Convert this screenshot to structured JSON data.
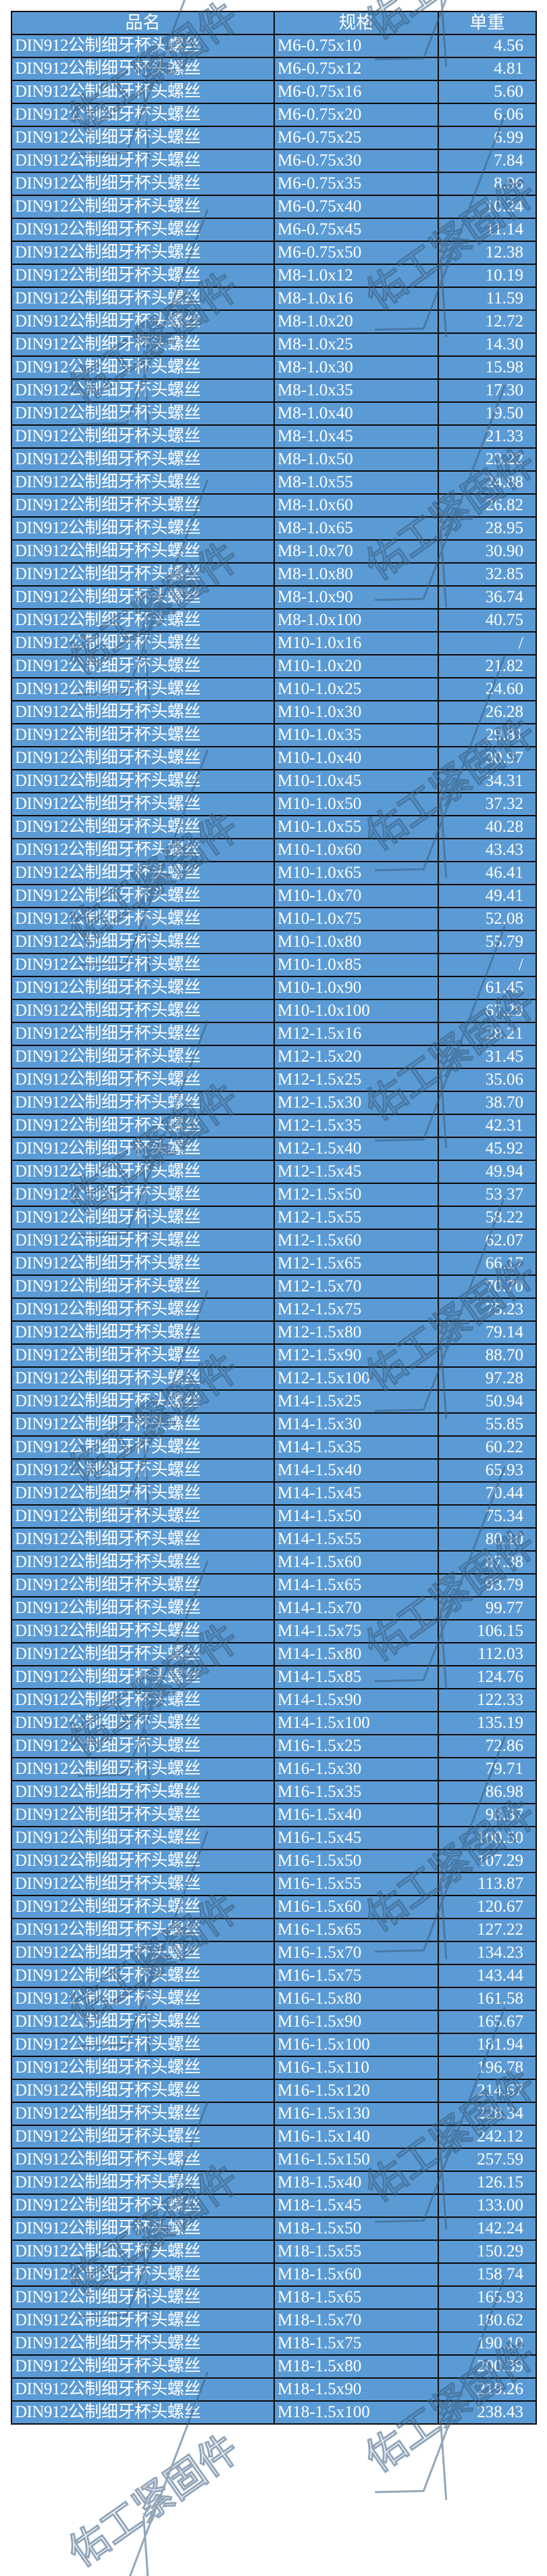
{
  "header": {
    "name": "品名",
    "spec": "规格",
    "weight": "单重"
  },
  "watermark": "佑工紧固件",
  "colors": {
    "cell_bg": "#5b9bd5",
    "text": "#ffffff",
    "border": "#0b0b0b"
  },
  "rows": [
    [
      "DIN912公制细牙杯头螺丝",
      "M6-0.75x10",
      "4.56"
    ],
    [
      "DIN912公制细牙杯头螺丝",
      "M6-0.75x12",
      "4.81"
    ],
    [
      "DIN912公制细牙杯头螺丝",
      "M6-0.75x16",
      "5.60"
    ],
    [
      "DIN912公制细牙杯头螺丝",
      "M6-0.75x20",
      "6.06"
    ],
    [
      "DIN912公制细牙杯头螺丝",
      "M6-0.75x25",
      "6.99"
    ],
    [
      "DIN912公制细牙杯头螺丝",
      "M6-0.75x30",
      "7.84"
    ],
    [
      "DIN912公制细牙杯头螺丝",
      "M6-0.75x35",
      "8.96"
    ],
    [
      "DIN912公制细牙杯头螺丝",
      "M6-0.75x40",
      "10.24"
    ],
    [
      "DIN912公制细牙杯头螺丝",
      "M6-0.75x45",
      "11.14"
    ],
    [
      "DIN912公制细牙杯头螺丝",
      "M6-0.75x50",
      "12.38"
    ],
    [
      "DIN912公制细牙杯头螺丝",
      "M8-1.0x12",
      "10.19"
    ],
    [
      "DIN912公制细牙杯头螺丝",
      "M8-1.0x16",
      "11.59"
    ],
    [
      "DIN912公制细牙杯头螺丝",
      "M8-1.0x20",
      "12.72"
    ],
    [
      "DIN912公制细牙杯头螺丝",
      "M8-1.0x25",
      "14.30"
    ],
    [
      "DIN912公制细牙杯头螺丝",
      "M8-1.0x30",
      "15.98"
    ],
    [
      "DIN912公制细牙杯头螺丝",
      "M8-1.0x35",
      "17.30"
    ],
    [
      "DIN912公制细牙杯头螺丝",
      "M8-1.0x40",
      "19.50"
    ],
    [
      "DIN912公制细牙杯头螺丝",
      "M8-1.0x45",
      "21.33"
    ],
    [
      "DIN912公制细牙杯头螺丝",
      "M8-1.0x50",
      "23.22"
    ],
    [
      "DIN912公制细牙杯头螺丝",
      "M8-1.0x55",
      "24.88"
    ],
    [
      "DIN912公制细牙杯头螺丝",
      "M8-1.0x60",
      "26.82"
    ],
    [
      "DIN912公制细牙杯头螺丝",
      "M8-1.0x65",
      "28.95"
    ],
    [
      "DIN912公制细牙杯头螺丝",
      "M8-1.0x70",
      "30.90"
    ],
    [
      "DIN912公制细牙杯头螺丝",
      "M8-1.0x80",
      "32.85"
    ],
    [
      "DIN912公制细牙杯头螺丝",
      "M8-1.0x90",
      "36.74"
    ],
    [
      "DIN912公制细牙杯头螺丝",
      "M8-1.0x100",
      "40.75"
    ],
    [
      "DIN912公制细牙杯头螺丝",
      "M10-1.0x16",
      "/"
    ],
    [
      "DIN912公制细牙杯头螺丝",
      "M10-1.0x20",
      "21.82"
    ],
    [
      "DIN912公制细牙杯头螺丝",
      "M10-1.0x25",
      "24.60"
    ],
    [
      "DIN912公制细牙杯头螺丝",
      "M10-1.0x30",
      "26.28"
    ],
    [
      "DIN912公制细牙杯头螺丝",
      "M10-1.0x35",
      "29.81"
    ],
    [
      "DIN912公制细牙杯头螺丝",
      "M10-1.0x40",
      "30.97"
    ],
    [
      "DIN912公制细牙杯头螺丝",
      "M10-1.0x45",
      "34.31"
    ],
    [
      "DIN912公制细牙杯头螺丝",
      "M10-1.0x50",
      "37.32"
    ],
    [
      "DIN912公制细牙杯头螺丝",
      "M10-1.0x55",
      "40.28"
    ],
    [
      "DIN912公制细牙杯头螺丝",
      "M10-1.0x60",
      "43.43"
    ],
    [
      "DIN912公制细牙杯头螺丝",
      "M10-1.0x65",
      "46.41"
    ],
    [
      "DIN912公制细牙杯头螺丝",
      "M10-1.0x70",
      "49.41"
    ],
    [
      "DIN912公制细牙杯头螺丝",
      "M10-1.0x75",
      "52.08"
    ],
    [
      "DIN912公制细牙杯头螺丝",
      "M10-1.0x80",
      "55.79"
    ],
    [
      "DIN912公制细牙杯头螺丝",
      "M10-1.0x85",
      "/"
    ],
    [
      "DIN912公制细牙杯头螺丝",
      "M10-1.0x90",
      "61.45"
    ],
    [
      "DIN912公制细牙杯头螺丝",
      "M10-1.0x100",
      "67.29"
    ],
    [
      "DIN912公制细牙杯头螺丝",
      "M12-1.5x16",
      "28.21"
    ],
    [
      "DIN912公制细牙杯头螺丝",
      "M12-1.5x20",
      "31.45"
    ],
    [
      "DIN912公制细牙杯头螺丝",
      "M12-1.5x25",
      "35.06"
    ],
    [
      "DIN912公制细牙杯头螺丝",
      "M12-1.5x30",
      "38.70"
    ],
    [
      "DIN912公制细牙杯头螺丝",
      "M12-1.5x35",
      "42.31"
    ],
    [
      "DIN912公制细牙杯头螺丝",
      "M12-1.5x40",
      "45.92"
    ],
    [
      "DIN912公制细牙杯头螺丝",
      "M12-1.5x45",
      "49.94"
    ],
    [
      "DIN912公制细牙杯头螺丝",
      "M12-1.5x50",
      "53.37"
    ],
    [
      "DIN912公制细牙杯头螺丝",
      "M12-1.5x55",
      "58.22"
    ],
    [
      "DIN912公制细牙杯头螺丝",
      "M12-1.5x60",
      "62.07"
    ],
    [
      "DIN912公制细牙杯头螺丝",
      "M12-1.5x65",
      "66.17"
    ],
    [
      "DIN912公制细牙杯头螺丝",
      "M12-1.5x70",
      "70.70"
    ],
    [
      "DIN912公制细牙杯头螺丝",
      "M12-1.5x75",
      "75.23"
    ],
    [
      "DIN912公制细牙杯头螺丝",
      "M12-1.5x80",
      "79.14"
    ],
    [
      "DIN912公制细牙杯头螺丝",
      "M12-1.5x90",
      "88.70"
    ],
    [
      "DIN912公制细牙杯头螺丝",
      "M12-1.5x100",
      "97.28"
    ],
    [
      "DIN912公制细牙杯头螺丝",
      "M14-1.5x25",
      "50.94"
    ],
    [
      "DIN912公制细牙杯头螺丝",
      "M14-1.5x30",
      "55.85"
    ],
    [
      "DIN912公制细牙杯头螺丝",
      "M14-1.5x35",
      "60.22"
    ],
    [
      "DIN912公制细牙杯头螺丝",
      "M14-1.5x40",
      "65.93"
    ],
    [
      "DIN912公制细牙杯头螺丝",
      "M14-1.5x45",
      "70.44"
    ],
    [
      "DIN912公制细牙杯头螺丝",
      "M14-1.5x50",
      "75.34"
    ],
    [
      "DIN912公制细牙杯头螺丝",
      "M14-1.5x55",
      "80.10"
    ],
    [
      "DIN912公制细牙杯头螺丝",
      "M14-1.5x60",
      "87.38"
    ],
    [
      "DIN912公制细牙杯头螺丝",
      "M14-1.5x65",
      "93.79"
    ],
    [
      "DIN912公制细牙杯头螺丝",
      "M14-1.5x70",
      "99.77"
    ],
    [
      "DIN912公制细牙杯头螺丝",
      "M14-1.5x75",
      "106.15"
    ],
    [
      "DIN912公制细牙杯头螺丝",
      "M14-1.5x80",
      "112.03"
    ],
    [
      "DIN912公制细牙杯头螺丝",
      "M14-1.5x85",
      "124.76"
    ],
    [
      "DIN912公制细牙杯头螺丝",
      "M14-1.5x90",
      "122.33"
    ],
    [
      "DIN912公制细牙杯头螺丝",
      "M14-1.5x100",
      "135.19"
    ],
    [
      "DIN912公制细牙杯头螺丝",
      "M16-1.5x25",
      "72.86"
    ],
    [
      "DIN912公制细牙杯头螺丝",
      "M16-1.5x30",
      "79.71"
    ],
    [
      "DIN912公制细牙杯头螺丝",
      "M16-1.5x35",
      "86.98"
    ],
    [
      "DIN912公制细牙杯头螺丝",
      "M16-1.5x40",
      "93.37"
    ],
    [
      "DIN912公制细牙杯头螺丝",
      "M16-1.5x45",
      "100.50"
    ],
    [
      "DIN912公制细牙杯头螺丝",
      "M16-1.5x50",
      "107.29"
    ],
    [
      "DIN912公制细牙杯头螺丝",
      "M16-1.5x55",
      "113.87"
    ],
    [
      "DIN912公制细牙杯头螺丝",
      "M16-1.5x60",
      "120.67"
    ],
    [
      "DIN912公制细牙杯头螺丝",
      "M16-1.5x65",
      "127.22"
    ],
    [
      "DIN912公制细牙杯头螺丝",
      "M16-1.5x70",
      "134.23"
    ],
    [
      "DIN912公制细牙杯头螺丝",
      "M16-1.5x75",
      "143.44"
    ],
    [
      "DIN912公制细牙杯头螺丝",
      "M16-1.5x80",
      "161.58"
    ],
    [
      "DIN912公制细牙杯头螺丝",
      "M16-1.5x90",
      "165.67"
    ],
    [
      "DIN912公制细牙杯头螺丝",
      "M16-1.5x100",
      "181.94"
    ],
    [
      "DIN912公制细牙杯头螺丝",
      "M16-1.5x110",
      "196.78"
    ],
    [
      "DIN912公制细牙杯头螺丝",
      "M16-1.5x120",
      "214.67"
    ],
    [
      "DIN912公制细牙杯头螺丝",
      "M16-1.5x130",
      "228.34"
    ],
    [
      "DIN912公制细牙杯头螺丝",
      "M16-1.5x140",
      "242.12"
    ],
    [
      "DIN912公制细牙杯头螺丝",
      "M16-1.5x150",
      "257.59"
    ],
    [
      "DIN912公制细牙杯头螺丝",
      "M18-1.5x40",
      "126.15"
    ],
    [
      "DIN912公制细牙杯头螺丝",
      "M18-1.5x45",
      "133.00"
    ],
    [
      "DIN912公制细牙杯头螺丝",
      "M18-1.5x50",
      "142.24"
    ],
    [
      "DIN912公制细牙杯头螺丝",
      "M18-1.5x55",
      "150.29"
    ],
    [
      "DIN912公制细牙杯头螺丝",
      "M18-1.5x60",
      "158.74"
    ],
    [
      "DIN912公制细牙杯头螺丝",
      "M18-1.5x65",
      "165.93"
    ],
    [
      "DIN912公制细牙杯头螺丝",
      "M18-1.5x70",
      "180.62"
    ],
    [
      "DIN912公制细牙杯头螺丝",
      "M18-1.5x75",
      "190.10"
    ],
    [
      "DIN912公制细牙杯头螺丝",
      "M18-1.5x80",
      "200.39"
    ],
    [
      "DIN912公制细牙杯头螺丝",
      "M18-1.5x90",
      "219.26"
    ],
    [
      "DIN912公制细牙杯头螺丝",
      "M18-1.5x100",
      "238.43"
    ]
  ]
}
